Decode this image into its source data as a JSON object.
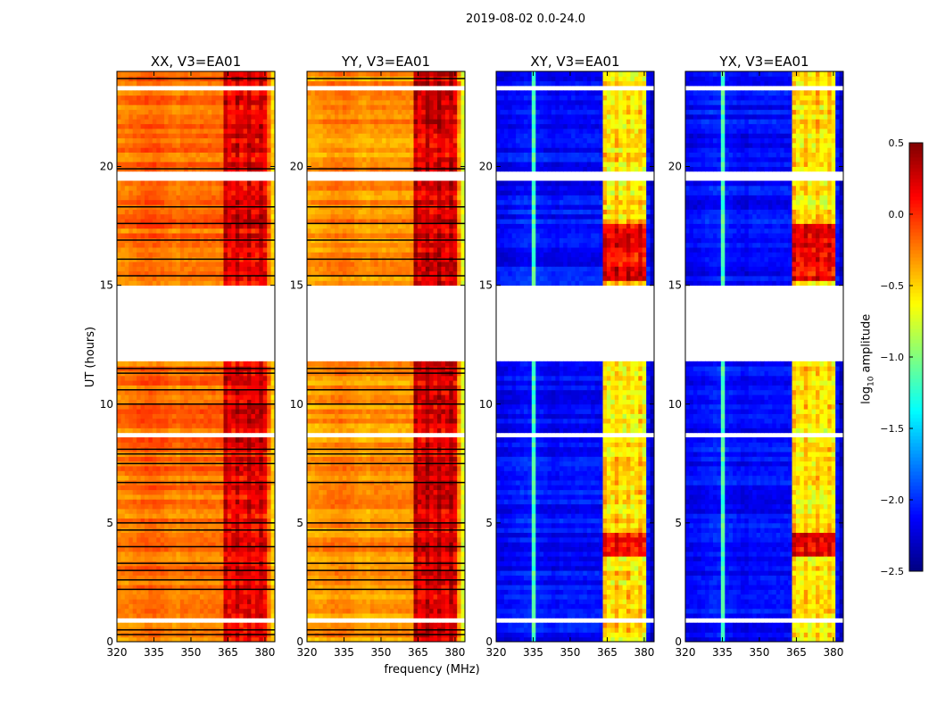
{
  "chart_data": {
    "type": "heatmap",
    "title": "2019-08-02 0.0-24.0",
    "xlabel": "frequency (MHz)",
    "ylabel": "UT (hours)",
    "xlim": [
      320,
      384
    ],
    "ylim": [
      0,
      24
    ],
    "xticks": [
      "320",
      "335",
      "350",
      "365",
      "380"
    ],
    "yticks": [
      "0",
      "5",
      "10",
      "15",
      "20"
    ],
    "panels": [
      {
        "title": "XX, V3=EA01",
        "base": -0.2,
        "band": 0.15,
        "edge": -0.5
      },
      {
        "title": "YY, V3=EA01",
        "base": -0.3,
        "band": 0.2,
        "edge": -0.7
      },
      {
        "title": "XY, V3=EA01",
        "base": -2.1,
        "band": -0.6,
        "edge": -2.3
      },
      {
        "title": "YX, V3=EA01",
        "base": -2.1,
        "band": -0.6,
        "edge": -2.3
      }
    ],
    "band_range_mhz": [
      363,
      380
    ],
    "flagged_gaps_hours": [
      [
        11.75,
        15.0
      ],
      [
        8.7,
        8.9
      ],
      [
        19.4,
        19.8
      ],
      [
        0.8,
        0.95
      ],
      [
        23.3,
        23.45
      ],
      [
        21.0,
        21.1
      ]
    ],
    "colorbar": {
      "label": "log10 amplitude",
      "range": [
        -2.5,
        0.5
      ],
      "ticks": [
        "0.5",
        "0.0",
        "−0.5",
        "−1.0",
        "−1.5",
        "−2.0",
        "−2.5"
      ],
      "colormap": "jet"
    }
  }
}
